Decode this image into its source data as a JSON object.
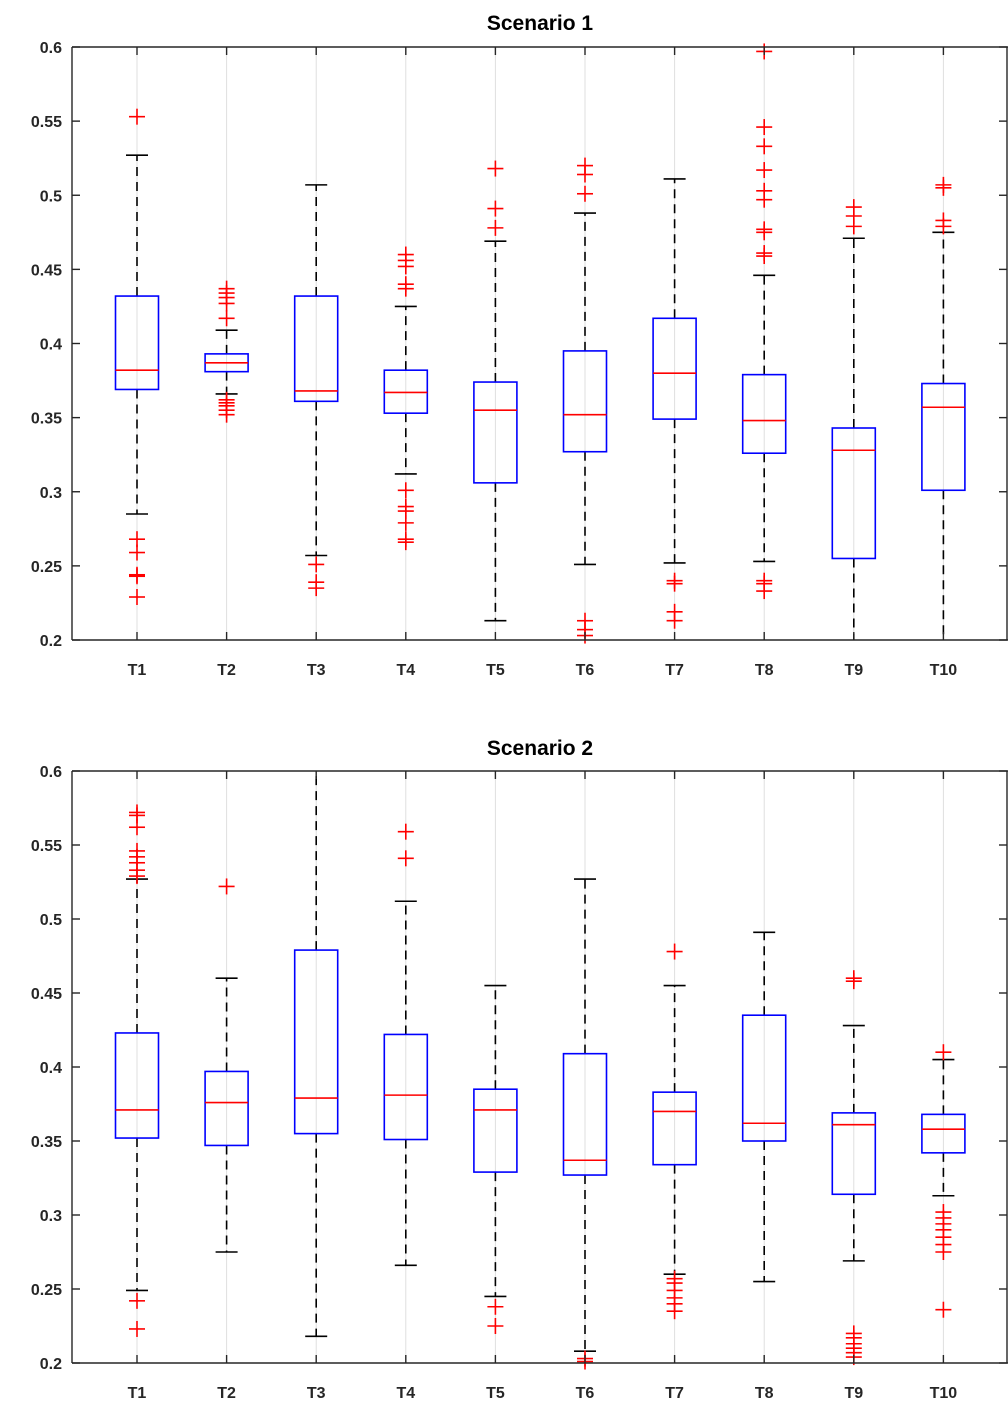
{
  "chart_data": [
    {
      "type": "box",
      "title": "Scenario 1",
      "categories": [
        "T1",
        "T2",
        "T3",
        "T4",
        "T5",
        "T6",
        "T7",
        "T8",
        "T9",
        "T10"
      ],
      "ylim": [
        0.2,
        0.6
      ],
      "yticks": [
        0.2,
        0.25,
        0.3,
        0.35,
        0.4,
        0.45,
        0.5,
        0.55,
        0.6
      ],
      "ytick_labels": [
        "0.2",
        "0.25",
        "0.3",
        "0.35",
        "0.4",
        "0.45",
        "0.5",
        "0.55",
        "0.6"
      ],
      "grid": "vertical",
      "boxes": [
        {
          "q1": 0.369,
          "median": 0.382,
          "q3": 0.432,
          "whisker_low": 0.285,
          "whisker_high": 0.527,
          "outliers": [
            0.553,
            0.268,
            0.259,
            0.244,
            0.243,
            0.229
          ]
        },
        {
          "q1": 0.381,
          "median": 0.387,
          "q3": 0.393,
          "whisker_low": 0.366,
          "whisker_high": 0.409,
          "outliers": [
            0.437,
            0.434,
            0.431,
            0.427,
            0.417,
            0.362,
            0.36,
            0.358,
            0.355,
            0.352
          ]
        },
        {
          "q1": 0.361,
          "median": 0.368,
          "q3": 0.432,
          "whisker_low": 0.257,
          "whisker_high": 0.507,
          "outliers": [
            0.251,
            0.239,
            0.235
          ]
        },
        {
          "q1": 0.353,
          "median": 0.367,
          "q3": 0.382,
          "whisker_low": 0.312,
          "whisker_high": 0.425,
          "outliers": [
            0.46,
            0.456,
            0.452,
            0.44,
            0.437,
            0.301,
            0.29,
            0.287,
            0.279,
            0.268,
            0.266
          ]
        },
        {
          "q1": 0.306,
          "median": 0.355,
          "q3": 0.374,
          "whisker_low": 0.213,
          "whisker_high": 0.469,
          "outliers": [
            0.518,
            0.491,
            0.478
          ]
        },
        {
          "q1": 0.327,
          "median": 0.352,
          "q3": 0.395,
          "whisker_low": 0.251,
          "whisker_high": 0.488,
          "outliers": [
            0.52,
            0.514,
            0.501,
            0.213,
            0.207,
            0.203
          ]
        },
        {
          "q1": 0.349,
          "median": 0.38,
          "q3": 0.417,
          "whisker_low": 0.252,
          "whisker_high": 0.511,
          "outliers": [
            0.24,
            0.238,
            0.219,
            0.213
          ]
        },
        {
          "q1": 0.326,
          "median": 0.348,
          "q3": 0.379,
          "whisker_low": 0.253,
          "whisker_high": 0.446,
          "outliers": [
            0.597,
            0.546,
            0.533,
            0.517,
            0.503,
            0.497,
            0.477,
            0.475,
            0.461,
            0.459,
            0.24,
            0.238,
            0.233
          ]
        },
        {
          "q1": 0.255,
          "median": 0.328,
          "q3": 0.343,
          "whisker_low": 0.2,
          "whisker_high": 0.471,
          "outliers": [
            0.492,
            0.486,
            0.479
          ]
        },
        {
          "q1": 0.301,
          "median": 0.357,
          "q3": 0.373,
          "whisker_low": 0.2,
          "whisker_high": 0.475,
          "outliers": [
            0.507,
            0.505,
            0.483,
            0.479
          ]
        }
      ]
    },
    {
      "type": "box",
      "title": "Scenario 2",
      "categories": [
        "T1",
        "T2",
        "T3",
        "T4",
        "T5",
        "T6",
        "T7",
        "T8",
        "T9",
        "T10"
      ],
      "ylim": [
        0.2,
        0.6
      ],
      "yticks": [
        0.2,
        0.25,
        0.3,
        0.35,
        0.4,
        0.45,
        0.5,
        0.55,
        0.6
      ],
      "ytick_labels": [
        "0.2",
        "0.25",
        "0.3",
        "0.35",
        "0.4",
        "0.45",
        "0.5",
        "0.55",
        "0.6"
      ],
      "grid": "vertical",
      "boxes": [
        {
          "q1": 0.352,
          "median": 0.371,
          "q3": 0.423,
          "whisker_low": 0.249,
          "whisker_high": 0.527,
          "outliers": [
            0.572,
            0.57,
            0.562,
            0.546,
            0.542,
            0.538,
            0.533,
            0.529,
            0.242,
            0.223
          ]
        },
        {
          "q1": 0.347,
          "median": 0.376,
          "q3": 0.397,
          "whisker_low": 0.275,
          "whisker_high": 0.46,
          "outliers": [
            0.522
          ]
        },
        {
          "q1": 0.355,
          "median": 0.379,
          "q3": 0.479,
          "whisker_low": 0.218,
          "whisker_high": 0.6,
          "outliers": []
        },
        {
          "q1": 0.351,
          "median": 0.381,
          "q3": 0.422,
          "whisker_low": 0.266,
          "whisker_high": 0.512,
          "outliers": [
            0.559,
            0.541
          ]
        },
        {
          "q1": 0.329,
          "median": 0.371,
          "q3": 0.385,
          "whisker_low": 0.245,
          "whisker_high": 0.455,
          "outliers": [
            0.238,
            0.225
          ]
        },
        {
          "q1": 0.327,
          "median": 0.337,
          "q3": 0.409,
          "whisker_low": 0.208,
          "whisker_high": 0.527,
          "outliers": [
            0.203,
            0.201
          ]
        },
        {
          "q1": 0.334,
          "median": 0.37,
          "q3": 0.383,
          "whisker_low": 0.26,
          "whisker_high": 0.455,
          "outliers": [
            0.478,
            0.257,
            0.254,
            0.249,
            0.244,
            0.24,
            0.235
          ]
        },
        {
          "q1": 0.35,
          "median": 0.362,
          "q3": 0.435,
          "whisker_low": 0.255,
          "whisker_high": 0.491,
          "outliers": []
        },
        {
          "q1": 0.314,
          "median": 0.361,
          "q3": 0.369,
          "whisker_low": 0.269,
          "whisker_high": 0.428,
          "outliers": [
            0.46,
            0.458,
            0.22,
            0.217,
            0.213,
            0.21,
            0.207,
            0.204
          ]
        },
        {
          "q1": 0.342,
          "median": 0.358,
          "q3": 0.368,
          "whisker_low": 0.313,
          "whisker_high": 0.405,
          "outliers": [
            0.41,
            0.302,
            0.298,
            0.294,
            0.29,
            0.285,
            0.28,
            0.275,
            0.236
          ]
        }
      ]
    }
  ],
  "colors": {
    "box": "#0000ff",
    "median": "#ff0000",
    "whisker": "#000000",
    "outlier": "#ff0000",
    "axis": "#262626",
    "grid": "#dfdfdf"
  }
}
